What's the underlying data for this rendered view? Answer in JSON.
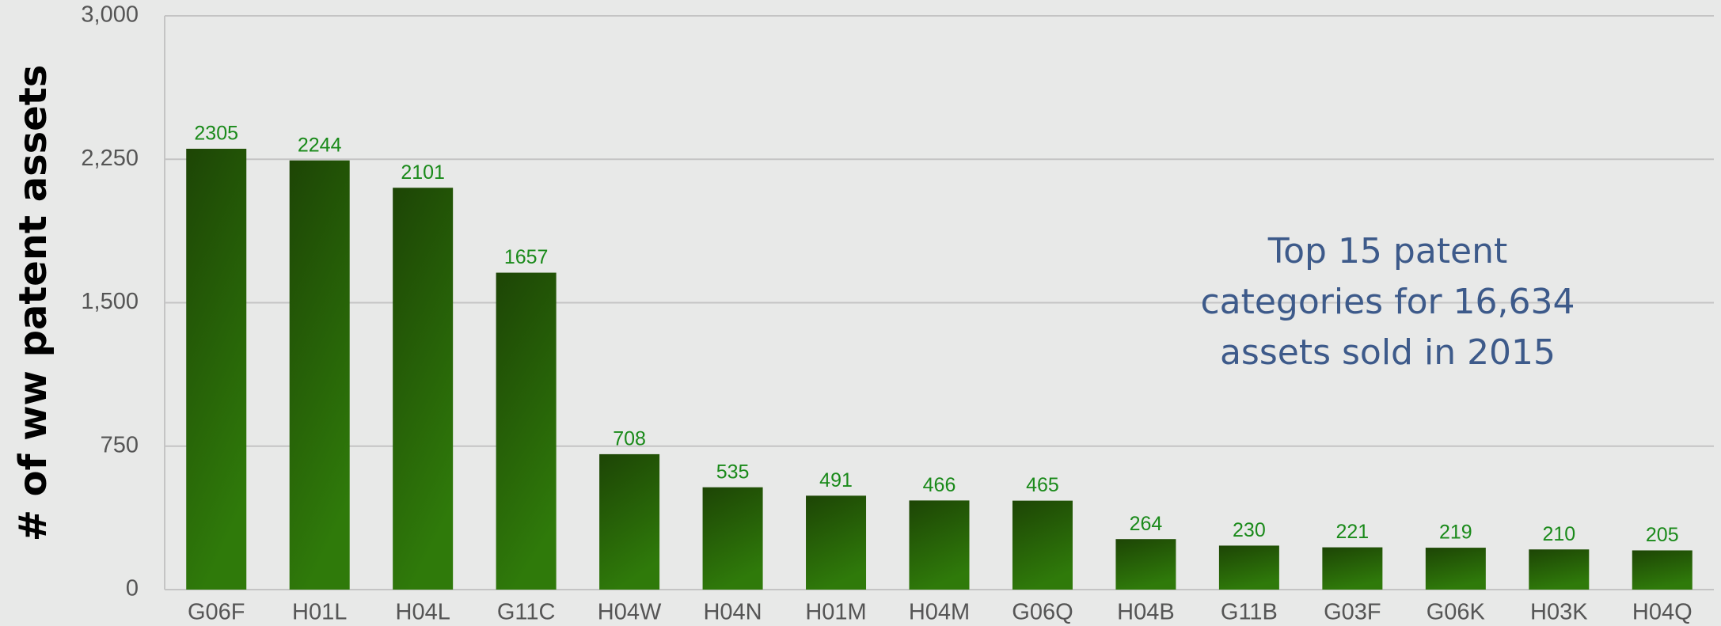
{
  "chart_data": {
    "type": "bar",
    "y_label": "# of ww patent assets",
    "annotation": [
      "Top 15 patent",
      "categories for 16,634",
      "assets sold in 2015"
    ],
    "categories": [
      "G06F",
      "H01L",
      "H04L",
      "G11C",
      "H04W",
      "H04N",
      "H01M",
      "H04M",
      "G06Q",
      "H04B",
      "G11B",
      "G03F",
      "G06K",
      "H03K",
      "H04Q"
    ],
    "values": [
      2305,
      2244,
      2101,
      1657,
      708,
      535,
      491,
      466,
      465,
      264,
      230,
      221,
      219,
      210,
      205
    ],
    "color": "#2a6a08",
    "ylim": [
      0,
      3000
    ],
    "yticks": [
      0,
      750,
      {
        "value": 1500,
        "label": "1,500"
      },
      {
        "value": 2250,
        "label": "2,250"
      },
      {
        "value": 3000,
        "label": "3,000"
      }
    ],
    "grid": true
  }
}
